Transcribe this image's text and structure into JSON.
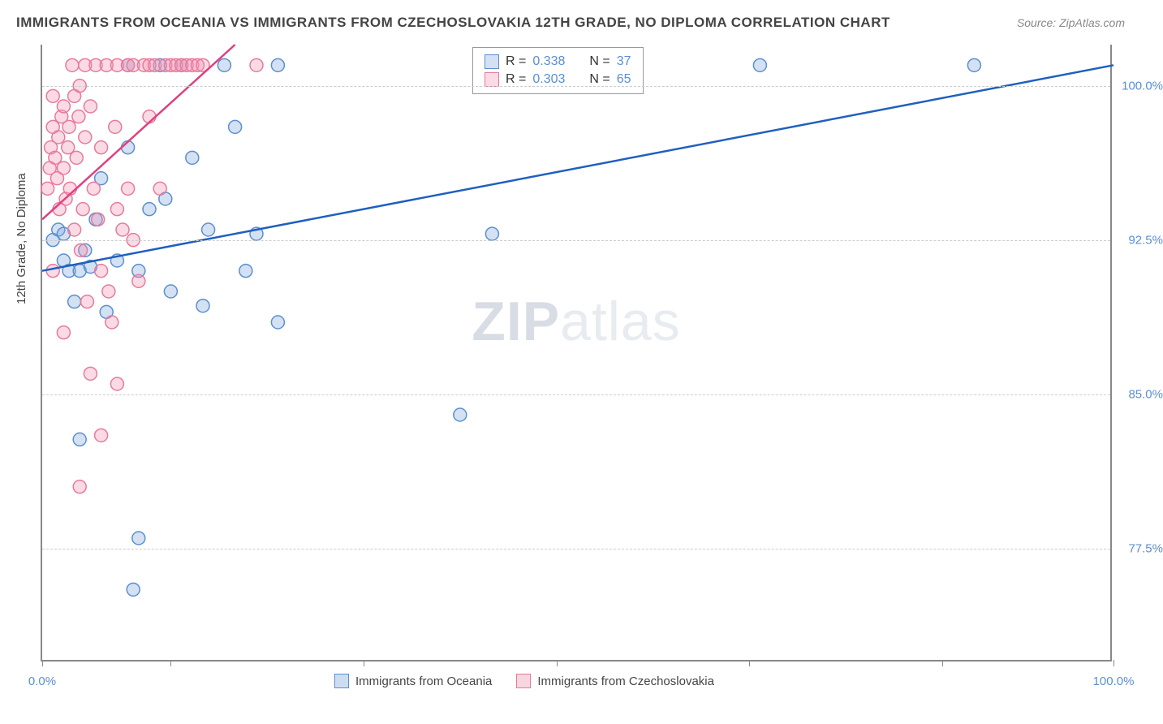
{
  "header": {
    "title": "IMMIGRANTS FROM OCEANIA VS IMMIGRANTS FROM CZECHOSLOVAKIA 12TH GRADE, NO DIPLOMA CORRELATION CHART",
    "source": "Source: ZipAtlas.com"
  },
  "chart": {
    "type": "scatter",
    "xlim": [
      0,
      100
    ],
    "ylim": [
      72,
      102
    ],
    "x_axis": {
      "tick_positions": [
        0,
        12,
        30,
        48,
        66,
        84,
        100
      ],
      "label_left": "0.0%",
      "label_right": "100.0%"
    },
    "y_axis": {
      "label": "12th Grade, No Diploma",
      "ticks": [
        {
          "value": 100.0,
          "label": "100.0%"
        },
        {
          "value": 92.5,
          "label": "92.5%"
        },
        {
          "value": 85.0,
          "label": "85.0%"
        },
        {
          "value": 77.5,
          "label": "77.5%"
        }
      ]
    },
    "gridline_color": "#cccccc",
    "background_color": "#ffffff",
    "watermark": {
      "part1": "ZIP",
      "part2": "atlas"
    },
    "series": [
      {
        "name": "Immigrants from Oceania",
        "color_stroke": "#5b8fd1",
        "color_fill": "rgba(130,170,220,0.35)",
        "r_value": "0.338",
        "n_value": "37",
        "trend": {
          "x1": 0,
          "y1": 91.0,
          "x2": 100,
          "y2": 101.0,
          "color": "#1f5fbf",
          "width": 2.5
        },
        "marker_radius": 8,
        "points": [
          [
            1,
            92.5
          ],
          [
            1.5,
            93
          ],
          [
            2,
            92.8
          ],
          [
            2,
            91.5
          ],
          [
            2.5,
            91
          ],
          [
            3,
            89.5
          ],
          [
            3.5,
            91
          ],
          [
            4,
            92
          ],
          [
            4.5,
            91.2
          ],
          [
            5,
            93.5
          ],
          [
            5.5,
            95.5
          ],
          [
            6,
            89
          ],
          [
            7,
            91.5
          ],
          [
            8,
            97
          ],
          [
            8,
            101
          ],
          [
            9,
            91
          ],
          [
            10,
            94
          ],
          [
            11,
            101
          ],
          [
            11.5,
            94.5
          ],
          [
            12,
            90
          ],
          [
            13,
            101
          ],
          [
            14,
            96.5
          ],
          [
            15,
            89.3
          ],
          [
            15.5,
            93
          ],
          [
            17,
            101
          ],
          [
            18,
            98
          ],
          [
            19,
            91
          ],
          [
            20,
            92.8
          ],
          [
            22,
            88.5
          ],
          [
            22,
            101
          ],
          [
            3.5,
            82.8
          ],
          [
            9,
            78
          ],
          [
            8.5,
            75.5
          ],
          [
            39,
            84
          ],
          [
            42,
            92.8
          ],
          [
            67,
            101
          ],
          [
            87,
            101
          ]
        ]
      },
      {
        "name": "Immigrants from Czechoslovakia",
        "color_stroke": "#e87a9a",
        "color_fill": "rgba(240,150,180,0.35)",
        "r_value": "0.303",
        "n_value": "65",
        "trend": {
          "x1": 0,
          "y1": 93.5,
          "x2": 18,
          "y2": 102,
          "color": "#e04080",
          "width": 2.5
        },
        "marker_radius": 8,
        "points": [
          [
            0.5,
            95
          ],
          [
            0.7,
            96
          ],
          [
            0.8,
            97
          ],
          [
            1,
            98
          ],
          [
            1,
            99.5
          ],
          [
            1.2,
            96.5
          ],
          [
            1.4,
            95.5
          ],
          [
            1.5,
            97.5
          ],
          [
            1.6,
            94
          ],
          [
            1.8,
            98.5
          ],
          [
            2,
            99
          ],
          [
            2,
            96
          ],
          [
            2.2,
            94.5
          ],
          [
            2.4,
            97
          ],
          [
            2.5,
            98
          ],
          [
            2.6,
            95
          ],
          [
            2.8,
            101
          ],
          [
            3,
            99.5
          ],
          [
            3,
            93
          ],
          [
            3.2,
            96.5
          ],
          [
            3.4,
            98.5
          ],
          [
            3.5,
            100
          ],
          [
            3.6,
            92
          ],
          [
            3.8,
            94
          ],
          [
            4,
            101
          ],
          [
            4,
            97.5
          ],
          [
            4.2,
            89.5
          ],
          [
            4.5,
            99
          ],
          [
            4.5,
            86
          ],
          [
            4.8,
            95
          ],
          [
            5,
            101
          ],
          [
            5.2,
            93.5
          ],
          [
            5.5,
            91
          ],
          [
            5.5,
            97
          ],
          [
            6,
            101
          ],
          [
            6.2,
            90
          ],
          [
            6.5,
            88.5
          ],
          [
            6.8,
            98
          ],
          [
            7,
            101
          ],
          [
            7,
            85.5
          ],
          [
            7.5,
            93
          ],
          [
            8,
            95
          ],
          [
            8,
            101
          ],
          [
            8.5,
            101
          ],
          [
            9,
            90.5
          ],
          [
            9.5,
            101
          ],
          [
            10,
            98.5
          ],
          [
            10,
            101
          ],
          [
            10.5,
            101
          ],
          [
            11,
            95
          ],
          [
            11.5,
            101
          ],
          [
            12,
            101
          ],
          [
            12.5,
            101
          ],
          [
            13,
            101
          ],
          [
            13.5,
            101
          ],
          [
            14,
            101
          ],
          [
            14.5,
            101
          ],
          [
            15,
            101
          ],
          [
            7,
            94
          ],
          [
            3.5,
            80.5
          ],
          [
            5.5,
            83
          ],
          [
            2,
            88
          ],
          [
            1,
            91
          ],
          [
            8.5,
            92.5
          ],
          [
            20,
            101
          ]
        ]
      }
    ],
    "legend_bottom": [
      {
        "label": "Immigrants from Oceania",
        "stroke": "#5b8fd1",
        "fill": "rgba(130,170,220,0.4)"
      },
      {
        "label": "Immigrants from Czechoslovakia",
        "stroke": "#e87a9a",
        "fill": "rgba(240,150,180,0.4)"
      }
    ]
  }
}
